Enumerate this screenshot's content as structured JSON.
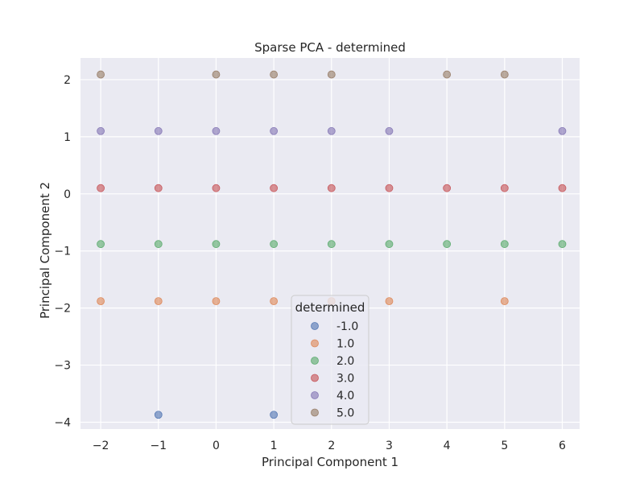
{
  "chart_data": {
    "type": "scatter",
    "title": "Sparse PCA - determined",
    "xlabel": "Principal Component 1",
    "ylabel": "Principal Component 2",
    "xlim": [
      -2.35,
      6.3
    ],
    "ylim": [
      -4.12,
      2.38
    ],
    "xticks": [
      {
        "value": -2,
        "label": "−2"
      },
      {
        "value": -1,
        "label": "−1"
      },
      {
        "value": 0,
        "label": "0"
      },
      {
        "value": 1,
        "label": "1"
      },
      {
        "value": 2,
        "label": "2"
      },
      {
        "value": 3,
        "label": "3"
      },
      {
        "value": 4,
        "label": "4"
      },
      {
        "value": 5,
        "label": "5"
      },
      {
        "value": 6,
        "label": "6"
      }
    ],
    "yticks": [
      {
        "value": -4,
        "label": "−4"
      },
      {
        "value": -3,
        "label": "−3"
      },
      {
        "value": -2,
        "label": "−2"
      },
      {
        "value": -1,
        "label": "−1"
      },
      {
        "value": 0,
        "label": "0"
      },
      {
        "value": 1,
        "label": "1"
      },
      {
        "value": 2,
        "label": "2"
      }
    ],
    "grid": true,
    "background": "#eaeaf2",
    "grid_color": "#ffffff",
    "marker_alpha": 0.6,
    "legend": {
      "title": "determined",
      "placement": "lower-center"
    },
    "series": [
      {
        "name": "-1.0",
        "color": "#4c72b0",
        "points": [
          [
            -1,
            -3.87
          ],
          [
            1,
            -3.87
          ]
        ]
      },
      {
        "name": "1.0",
        "color": "#dd8452",
        "points": [
          [
            -2,
            -1.88
          ],
          [
            -1,
            -1.88
          ],
          [
            0,
            -1.88
          ],
          [
            1,
            -1.88
          ],
          [
            2,
            -1.88
          ],
          [
            3,
            -1.88
          ],
          [
            5,
            -1.88
          ]
        ]
      },
      {
        "name": "2.0",
        "color": "#55a868",
        "points": [
          [
            -2,
            -0.88
          ],
          [
            -1,
            -0.88
          ],
          [
            0,
            -0.88
          ],
          [
            1,
            -0.88
          ],
          [
            2,
            -0.88
          ],
          [
            3,
            -0.88
          ],
          [
            4,
            -0.88
          ],
          [
            5,
            -0.88
          ],
          [
            6,
            -0.88
          ]
        ]
      },
      {
        "name": "3.0",
        "color": "#c44e52",
        "points": [
          [
            -2,
            0.1
          ],
          [
            -1,
            0.1
          ],
          [
            0,
            0.1
          ],
          [
            1,
            0.1
          ],
          [
            2,
            0.1
          ],
          [
            3,
            0.1
          ],
          [
            4,
            0.1
          ],
          [
            5,
            0.1
          ],
          [
            6,
            0.1
          ]
        ]
      },
      {
        "name": "4.0",
        "color": "#8172b3",
        "points": [
          [
            -2,
            1.1
          ],
          [
            -1,
            1.1
          ],
          [
            0,
            1.1
          ],
          [
            1,
            1.1
          ],
          [
            2,
            1.1
          ],
          [
            3,
            1.1
          ],
          [
            6,
            1.1
          ]
        ]
      },
      {
        "name": "5.0",
        "color": "#937860",
        "points": [
          [
            -2,
            2.09
          ],
          [
            0,
            2.09
          ],
          [
            1,
            2.09
          ],
          [
            2,
            2.09
          ],
          [
            4,
            2.09
          ],
          [
            5,
            2.09
          ]
        ]
      }
    ]
  }
}
